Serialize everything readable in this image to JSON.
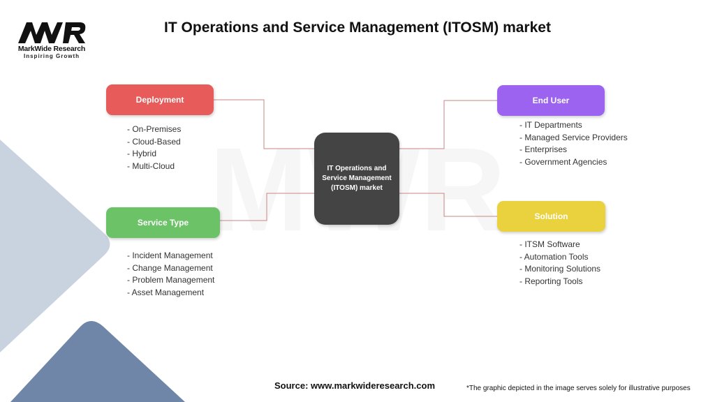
{
  "logo": {
    "brand": "MarkWide Research",
    "tagline": "Inspiring Growth",
    "mark": "MWR"
  },
  "title": "IT Operations and Service Management (ITOSM) market",
  "center": "IT Operations and Service Management (ITOSM) market",
  "colors": {
    "deployment": "#e85b5b",
    "service_type": "#6cc267",
    "end_user": "#9b63f0",
    "solution": "#ead23e",
    "center": "#444444",
    "connector": "#c98585"
  },
  "branches": {
    "deployment": {
      "label": "Deployment",
      "items": [
        "- On-Premises",
        "- Cloud-Based",
        "- Hybrid",
        "- Multi-Cloud"
      ]
    },
    "service_type": {
      "label": "Service Type",
      "items": [
        "- Incident Management",
        "- Change Management",
        "- Problem Management",
        "- Asset Management"
      ]
    },
    "end_user": {
      "label": "End User",
      "items": [
        "- IT Departments",
        "- Managed Service Providers",
        "- Enterprises",
        "- Government Agencies"
      ]
    },
    "solution": {
      "label": "Solution",
      "items": [
        "- ITSM Software",
        "- Automation Tools",
        "- Monitoring Solutions",
        "- Reporting Tools"
      ]
    }
  },
  "footer": {
    "source": "Source: www.markwideresearch.com",
    "disclaimer": "*The graphic depicted in the image serves solely for illustrative purposes"
  }
}
